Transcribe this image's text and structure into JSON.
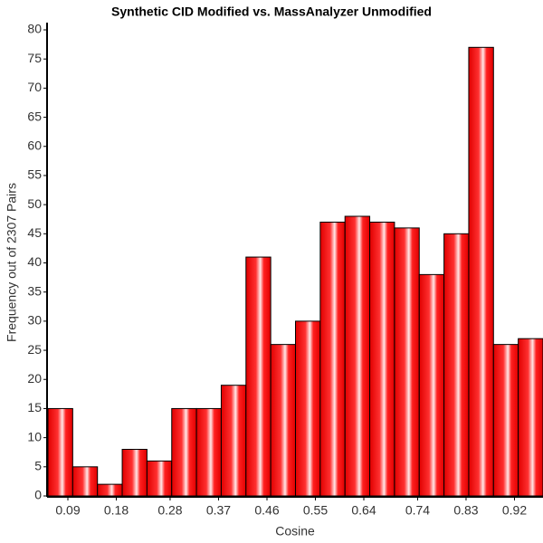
{
  "chart_data": {
    "type": "histogram",
    "title": "Synthetic CID Modified vs. MassAnalyzer Unmodified",
    "x_label": "Cosine",
    "y_label": "Frequency out of 2307 Pairs",
    "bins": [
      0.053,
      0.099,
      0.145,
      0.191,
      0.237,
      0.283,
      0.329,
      0.375,
      0.421,
      0.467,
      0.513,
      0.559,
      0.605,
      0.651,
      0.697,
      0.743,
      0.789,
      0.835,
      0.881,
      0.927,
      0.973
    ],
    "values": [
      15,
      5,
      2,
      8,
      6,
      15,
      15,
      19,
      41,
      26,
      30,
      47,
      48,
      47,
      46,
      38,
      45,
      77,
      26,
      27
    ],
    "color": "#ff0000",
    "xlim": [
      0.053,
      0.973
    ],
    "xticks": [
      0.09,
      0.18,
      0.28,
      0.37,
      0.46,
      0.55,
      0.64,
      0.74,
      0.83,
      0.92
    ],
    "ylim": [
      0,
      80
    ],
    "yticks": [
      0,
      5,
      10,
      15,
      20,
      25,
      30,
      35,
      40,
      45,
      50,
      55,
      60,
      65,
      70,
      75,
      80
    ]
  }
}
